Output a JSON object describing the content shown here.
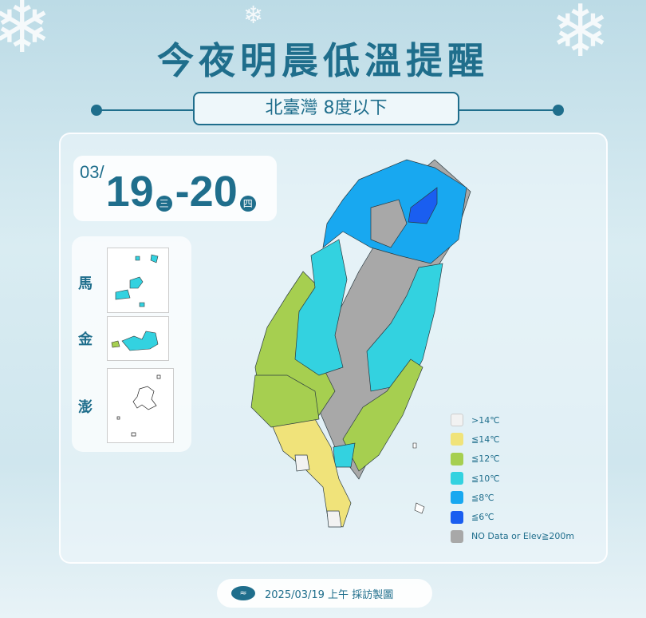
{
  "header": {
    "title": "今夜明晨低溫提醒",
    "subtitle": "北臺灣 8度以下"
  },
  "date": {
    "month": "03/",
    "start_day": "19",
    "start_weekday": "三",
    "separator": "-",
    "end_day": "20",
    "end_weekday": "四"
  },
  "islands": [
    {
      "label": "馬"
    },
    {
      "label": "金"
    },
    {
      "label": "澎"
    }
  ],
  "legend": [
    {
      "label": ">14℃",
      "color": "#f2f2f2"
    },
    {
      "label": "≦14℃",
      "color": "#f0e37a"
    },
    {
      "label": "≦12℃",
      "color": "#a6cf50"
    },
    {
      "label": "≦10℃",
      "color": "#33d2e0"
    },
    {
      "label": "≦8℃",
      "color": "#18a8f0"
    },
    {
      "label": "≦6℃",
      "color": "#1a5ef0"
    },
    {
      "label": "NO Data or Elev≧200m",
      "color": "#a8a8a8"
    }
  ],
  "footer": {
    "text": "2025/03/19 上午 採訪製圖",
    "logo_icon": "cwa-logo-icon"
  },
  "colors": {
    "accent": "#1f6e8c"
  }
}
